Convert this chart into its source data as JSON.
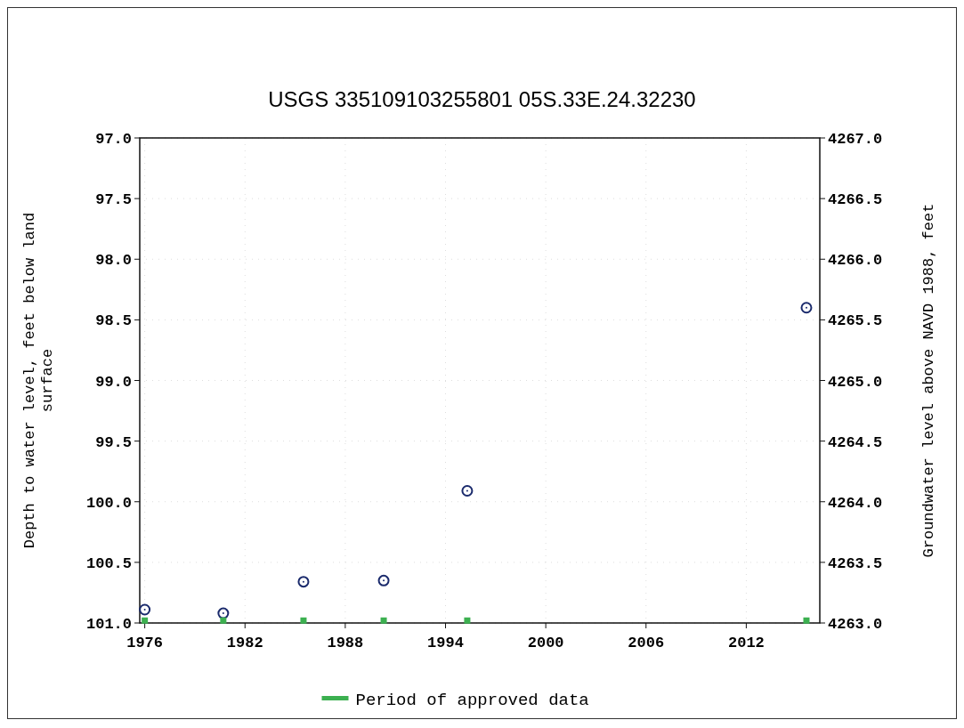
{
  "chart_data": {
    "type": "scatter",
    "title": "USGS 335109103255801 05S.33E.24.32230",
    "ylabel": "Depth to water level, feet below land surface",
    "y2label": "Groundwater level above NAVD 1988, feet",
    "xlim": [
      1975.7,
      2016.4
    ],
    "xticks": [
      1976,
      1982,
      1988,
      1994,
      2000,
      2006,
      2012
    ],
    "ylim": [
      101,
      97
    ],
    "yticks": [
      {
        "value": 97,
        "label": "97.0"
      },
      {
        "value": 97.5,
        "label": "97.5"
      },
      {
        "value": 98,
        "label": "98.0"
      },
      {
        "value": 98.5,
        "label": "98.5"
      },
      {
        "value": 99,
        "label": "99.0"
      },
      {
        "value": 99.5,
        "label": "99.5"
      },
      {
        "value": 100,
        "label": "100.0"
      },
      {
        "value": 100.5,
        "label": "100.5"
      },
      {
        "value": 101,
        "label": "101.0"
      }
    ],
    "y2lim": [
      4263,
      4267
    ],
    "y2ticks": [
      {
        "value": 4263,
        "label": "4263.0"
      },
      {
        "value": 4263.5,
        "label": "4263.5"
      },
      {
        "value": 4264,
        "label": "4264.0"
      },
      {
        "value": 4264.5,
        "label": "4264.5"
      },
      {
        "value": 4265,
        "label": "4265.0"
      },
      {
        "value": 4265.5,
        "label": "4265.5"
      },
      {
        "value": 4266,
        "label": "4266.0"
      },
      {
        "value": 4266.5,
        "label": "4266.5"
      },
      {
        "value": 4267,
        "label": "4267.0"
      }
    ],
    "grid": true,
    "legend": "bottom",
    "series": [
      {
        "color": "#1a2a6c",
        "marker": "circle",
        "x": [
          1976.0,
          1980.7,
          1985.5,
          1990.3,
          1995.3,
          2015.6
        ],
        "values": [
          100.89,
          100.92,
          100.66,
          100.65,
          99.91,
          98.4
        ]
      },
      {
        "name": "Period of approved data",
        "color": "#3cb050",
        "marker": "square",
        "x": [
          1976.0,
          1980.7,
          1985.5,
          1990.3,
          1995.3,
          2015.6
        ],
        "values": [
          100.98,
          100.98,
          100.98,
          100.98,
          100.98,
          100.98
        ]
      }
    ]
  }
}
